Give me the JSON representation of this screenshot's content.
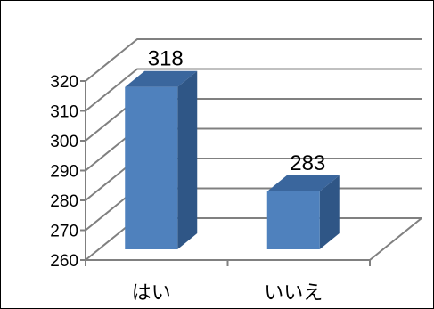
{
  "chart_data": {
    "type": "bar",
    "style": "3d-column",
    "categories": [
      "はい",
      "いいえ"
    ],
    "values": [
      318,
      283
    ],
    "data_labels": [
      "318",
      "283"
    ],
    "ylim": [
      260,
      320
    ],
    "yticks": [
      260,
      270,
      280,
      290,
      300,
      310,
      320
    ],
    "title": "",
    "xlabel": "",
    "ylabel": "",
    "grid": true,
    "legend": "none",
    "bar_colors": {
      "front": "#4F81BD",
      "side": "#2F5686",
      "top": "#3A669D"
    },
    "grid_color": "#808080"
  }
}
